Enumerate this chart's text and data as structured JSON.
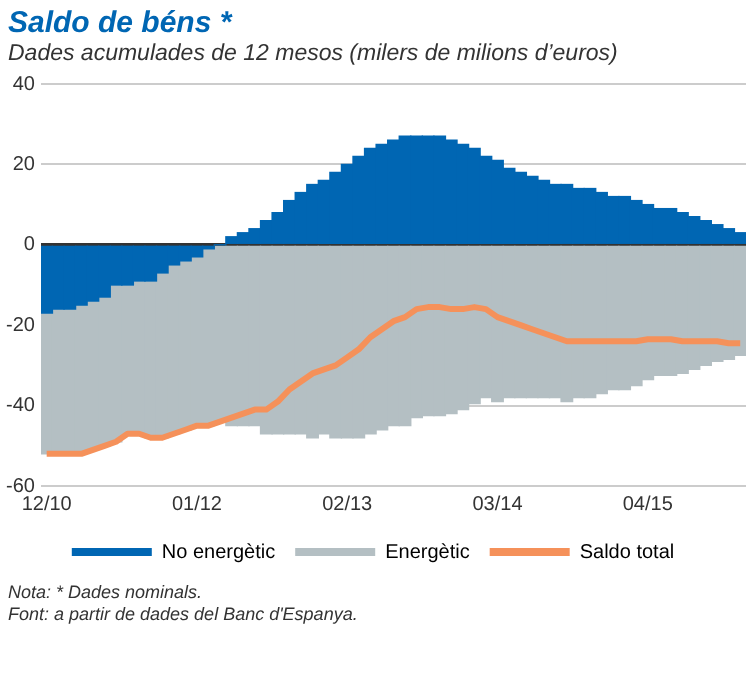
{
  "chart_data": {
    "type": "bar",
    "stacked": true,
    "title": "Saldo de béns *",
    "subtitle": "Dades acumulades de 12 mesos (milers de milions d’euros)",
    "categories": [
      "12/10",
      null,
      null,
      null,
      null,
      null,
      null,
      null,
      null,
      null,
      null,
      null,
      null,
      "01/12",
      null,
      null,
      null,
      null,
      null,
      null,
      null,
      null,
      null,
      null,
      null,
      null,
      "02/13",
      null,
      null,
      null,
      null,
      null,
      null,
      null,
      null,
      null,
      null,
      null,
      null,
      "03/14",
      null,
      null,
      null,
      null,
      null,
      null,
      null,
      null,
      null,
      null,
      null,
      null,
      "04/15",
      null,
      null,
      null,
      null,
      null,
      null,
      null,
      null
    ],
    "series": [
      {
        "name": "No energètic",
        "color": "#0066b3",
        "values": [
          -17,
          -16,
          -16,
          -15,
          -14,
          -13,
          -10,
          -10,
          -9,
          -9,
          -7,
          -5,
          -4,
          -3,
          -1,
          0,
          2,
          3,
          4,
          6,
          8,
          11,
          13,
          15,
          16,
          18,
          20,
          22,
          24,
          25,
          26,
          27,
          27,
          27,
          27,
          26,
          25,
          24,
          22,
          21,
          19,
          18,
          17,
          16,
          15,
          15,
          14,
          14,
          13,
          12,
          12,
          11,
          10,
          9,
          9,
          8,
          7,
          6,
          5,
          4,
          3
        ]
      },
      {
        "name": "Energètic",
        "color": "#b4bfc3",
        "values": [
          -35,
          -36,
          -36,
          -37,
          -37,
          -37,
          -39,
          -37,
          -38,
          -39,
          -41,
          -42,
          -42,
          -42,
          -44,
          -44,
          -45,
          -45,
          -45,
          -47,
          -47,
          -47,
          -47,
          -48,
          -47,
          -48,
          -48,
          -48,
          -47,
          -46,
          -45,
          -45,
          -43,
          -42.5,
          -42.5,
          -42,
          -41,
          -39.5,
          -38,
          -39,
          -38,
          -38,
          -38,
          -38,
          -38,
          -39,
          -38,
          -38,
          -37,
          -36,
          -36,
          -35,
          -33.5,
          -32.5,
          -32.5,
          -32,
          -31,
          -30,
          -29,
          -28.5,
          -27.5
        ]
      },
      {
        "name": "Saldo total",
        "type": "line",
        "color": "#f5915a",
        "values": [
          -52,
          -52,
          -52,
          -52,
          -51,
          -50,
          -49,
          -47,
          -47,
          -48,
          -48,
          -47,
          -46,
          -45,
          -45,
          -44,
          -43,
          -42,
          -41,
          -41,
          -39,
          -36,
          -34,
          -32,
          -31,
          -30,
          -28,
          -26,
          -23,
          -21,
          -19,
          -18,
          -16,
          -15.5,
          -15.5,
          -16,
          -16,
          -15.5,
          -16,
          -18,
          -19,
          -20,
          -21,
          -22,
          -23,
          -24,
          -24,
          -24,
          -24,
          -24,
          -24,
          -24,
          -23.5,
          -23.5,
          -23.5,
          -24,
          -24,
          -24,
          -24,
          -24.5,
          -24.5
        ]
      }
    ],
    "ylim": [
      -60,
      40
    ],
    "yticks": [
      -60,
      -40,
      -20,
      0,
      20,
      40
    ],
    "grid": "y",
    "legend": "bottom",
    "annotations": [
      "Nota: * Dades nominals.",
      "Font: a partir de dades del Banc d'Espanya."
    ]
  }
}
